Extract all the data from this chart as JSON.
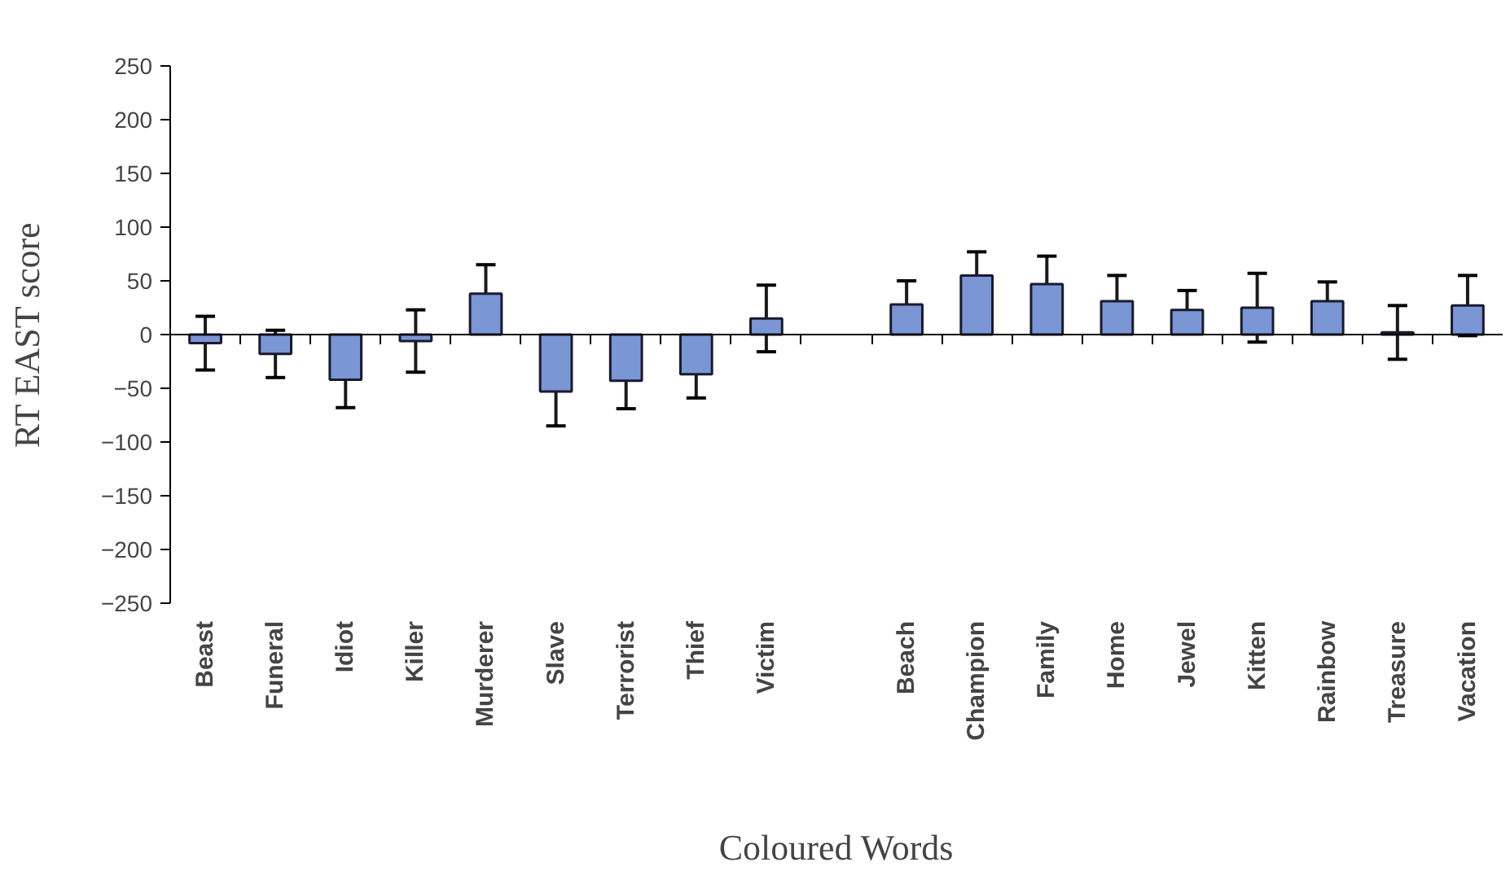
{
  "chart_data": {
    "type": "bar",
    "xlabel": "Coloured Words",
    "ylabel": "RT EAST score",
    "categories": [
      "Beast",
      "Funeral",
      "Idiot",
      "Killer",
      "Murderer",
      "Slave",
      "Terrorist",
      "Thief",
      "Victim",
      null,
      "Beach",
      "Champion",
      "Family",
      "Home",
      "Jewel",
      "Kitten",
      "Rainbow",
      "Treasure",
      "Vacation"
    ],
    "values": [
      -8,
      -18,
      -42,
      -6,
      38,
      -53,
      -43,
      -37,
      15,
      null,
      28,
      55,
      47,
      31,
      23,
      25,
      31,
      2,
      27
    ],
    "errors": [
      25,
      22,
      26,
      29,
      27,
      32,
      26,
      22,
      31,
      null,
      22,
      22,
      26,
      24,
      18,
      32,
      18,
      25,
      28
    ],
    "color": "#7b96d4",
    "ylim": [
      -250,
      250
    ],
    "yticks": [
      -250,
      -200,
      -150,
      -100,
      -50,
      0,
      50,
      100,
      150,
      200,
      250
    ]
  }
}
